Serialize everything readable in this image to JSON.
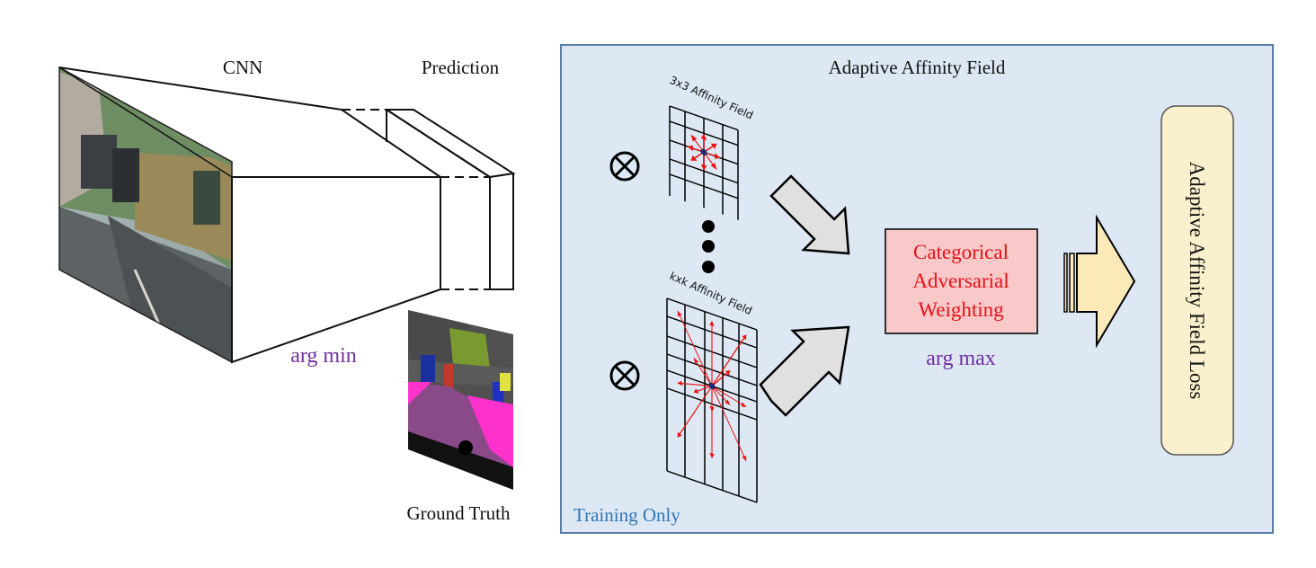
{
  "left": {
    "cnn_label": "CNN",
    "prediction_label": "Prediction",
    "argmin_label": "arg min",
    "ground_truth_label": "Ground Truth"
  },
  "panel": {
    "title": "Adaptive Affinity Field",
    "training_only_label": "Training Only",
    "field_3x3_label": "3x3 Affinity Field",
    "field_kxk_label": "kxk Affinity Field",
    "otimes_symbol": "⊗",
    "cat_line1": "Categorical",
    "cat_line2": "Adversarial",
    "cat_line3": "Weighting",
    "argmax_label": "arg max",
    "loss_label": "Adaptive Affinity Field Loss"
  },
  "colors": {
    "panel_fill": "#dde8f4",
    "panel_border": "#5a7fa8",
    "training_only": "#2e75b6",
    "purple_label": "#7030a0",
    "cat_box_fill": "#f9c8c8",
    "cat_text": "#e8101a",
    "loss_fill": "#fbf0cd",
    "arrow_gray": "#e0e0e0",
    "arrow_cream": "#fce9b8",
    "field_arrow": "#ee1111",
    "center_dot": "#1a2a6a"
  },
  "icons": {
    "street_photo": "street-scene-image",
    "segmentation": "segmentation-map-image"
  }
}
